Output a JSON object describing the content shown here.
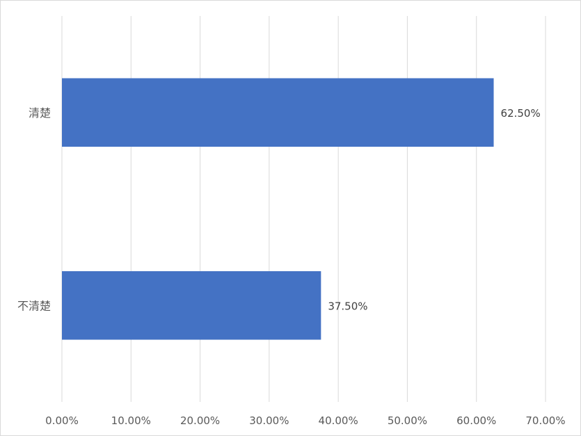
{
  "chart_data": {
    "type": "bar",
    "orientation": "horizontal",
    "categories": [
      "清楚",
      "不清楚"
    ],
    "values": [
      62.5,
      37.5
    ],
    "data_labels": [
      "62.50%",
      "37.50%"
    ],
    "x_ticks": [
      "0.00%",
      "10.00%",
      "20.00%",
      "30.00%",
      "40.00%",
      "50.00%",
      "60.00%",
      "70.00%"
    ],
    "xlim": [
      0,
      70
    ],
    "grid": true,
    "legend": "none",
    "bar_color": "#4472C4",
    "grid_color": "#d9d9d9"
  }
}
